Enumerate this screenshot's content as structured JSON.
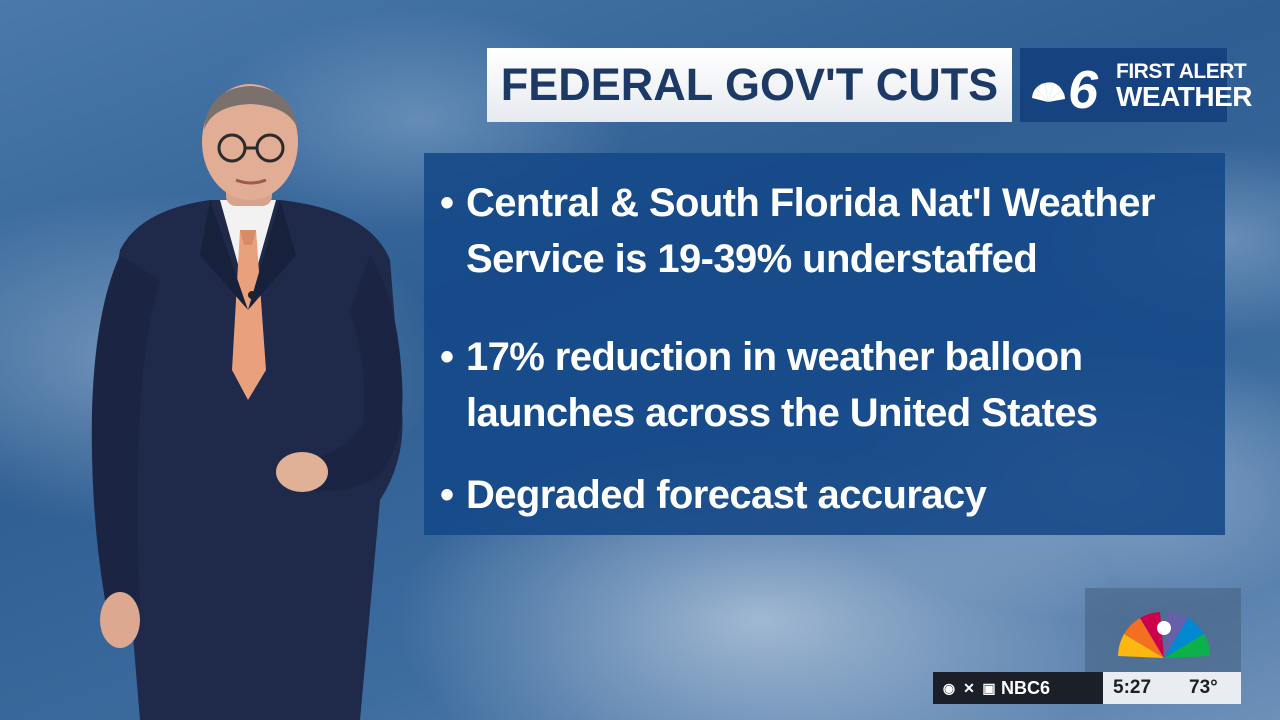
{
  "title": "FEDERAL GOV'T CUTS",
  "brand": {
    "station_number": "6",
    "line1": "FIRST ALERT",
    "line2": "WEATHER"
  },
  "bullets": [
    {
      "marker": "•",
      "text": "Central & South Florida Nat'l Weather Service is 19-39% understaffed"
    },
    {
      "marker": "•",
      "text": "17% reduction in weather balloon launches across the United States"
    },
    {
      "marker": "•",
      "text": "Degraded forecast accuracy"
    }
  ],
  "ticker": {
    "handle": "NBC6",
    "time": "5:27",
    "temp": "73°",
    "icons": [
      "facebook-icon",
      "x-icon",
      "instagram-icon"
    ]
  },
  "colors": {
    "title_text": "#1d3a66",
    "brand_bg": "#16427f",
    "panel_bg": "#144887"
  }
}
